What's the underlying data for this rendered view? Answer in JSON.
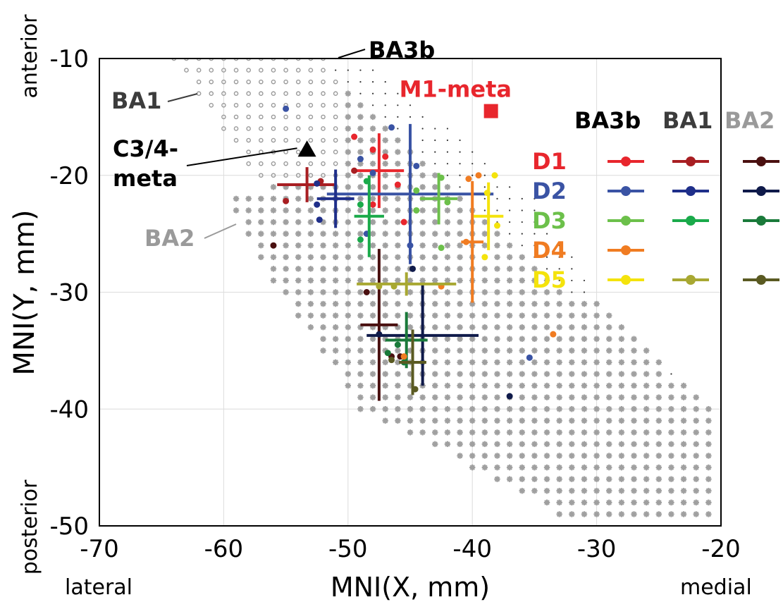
{
  "chart_data": {
    "type": "scatter",
    "xlabel": "MNI(X, mm)",
    "ylabel": "MNI(Y, mm)",
    "xlim": [
      -70,
      -20
    ],
    "ylim": [
      -50,
      -8
    ],
    "x_ticks": [
      -70,
      -60,
      -50,
      -40,
      -30,
      -20
    ],
    "y_ticks": [
      -10,
      -20,
      -30,
      -40,
      -50
    ],
    "x_tick_labels": [
      "-70",
      "-60",
      "-50",
      "-40",
      "-30",
      "-20"
    ],
    "y_tick_labels": [
      "-10",
      "-20",
      "-30",
      "-40",
      "-50"
    ],
    "grid": true,
    "orientation_labels": {
      "anterior": "anterior",
      "posterior": "posterior",
      "lateral": "lateral",
      "medial": "medial"
    },
    "region_labels": [
      {
        "text": "BA3b",
        "color": "#000000",
        "x": -49.5,
        "y": -9.3,
        "pointer_x": -52,
        "pointer_y": -10
      },
      {
        "text": "BA1",
        "color": "#3c3c3c",
        "x": -66.5,
        "y": -13.7,
        "pointer_x": -62,
        "pointer_y": -13
      },
      {
        "text": "BA2",
        "color": "#9a9a9a",
        "x": -64,
        "y": -25.5,
        "pointer_x": -59.5,
        "pointer_y": -23.5
      }
    ],
    "markers": [
      {
        "name": "M1-meta",
        "label": "M1-meta",
        "shape": "square",
        "color": "#e8262d",
        "x": -38.5,
        "y": -14.5
      },
      {
        "name": "C3/4-meta",
        "label_lines": [
          "C3/4-",
          "meta"
        ],
        "shape": "triangle",
        "color": "#000000",
        "x": -53.3,
        "y": -17.8
      }
    ],
    "legend": {
      "placement": "top-right",
      "columns": [
        "BA3b",
        "BA1",
        "BA2"
      ],
      "column_colors": [
        "#000000",
        "#3c3c3c",
        "#9a9a9a"
      ],
      "rows": [
        {
          "label": "D1",
          "color": "#e8262d",
          "colors": [
            "#e8262d",
            "#a81e22",
            "#4a1010"
          ]
        },
        {
          "label": "D2",
          "color": "#3a53a4",
          "colors": [
            "#3a53a4",
            "#1f2f8a",
            "#0f1a4a"
          ]
        },
        {
          "label": "D3",
          "color": "#6cc04a",
          "colors": [
            "#6cc04a",
            "#1aaa4a",
            "#1a7a3a"
          ]
        },
        {
          "label": "D4",
          "color": "#f07c22",
          "colors": [
            "#f07c22"
          ]
        },
        {
          "label": "D5",
          "color": "#f4e30c",
          "colors": [
            "#f4e30c",
            "#a8a832",
            "#5a5a22"
          ]
        }
      ]
    },
    "series": [
      {
        "name": "D1 BA3b",
        "color": "#e8262d",
        "center": [
          -47.5,
          -19.6
        ],
        "xerr": 2,
        "yerr": 3.2,
        "points": [
          [
            -49.5,
            -16.7
          ],
          [
            -48,
            -17.8
          ],
          [
            -47,
            -18.4
          ],
          [
            -46,
            -20.8
          ],
          [
            -45.5,
            -24
          ],
          [
            -48,
            -22.5
          ]
        ]
      },
      {
        "name": "D1 BA1",
        "color": "#a81e22",
        "center": [
          -53.3,
          -20.8
        ],
        "xerr": 2.4,
        "yerr": 1.5,
        "points": [
          [
            -55,
            -22.2
          ],
          [
            -52.2,
            -20.5
          ],
          [
            -49.5,
            -19.6
          ]
        ]
      },
      {
        "name": "D1 BA2",
        "color": "#4a1010",
        "center": [
          -47.5,
          -32.8
        ],
        "xerr": 1.5,
        "yerr": 6.5,
        "points": [
          [
            -56,
            -26
          ],
          [
            -48.5,
            -30
          ],
          [
            -46.5,
            -35.5
          ],
          [
            -45.8,
            -35.5
          ]
        ]
      },
      {
        "name": "D2 BA3b",
        "color": "#3a53a4",
        "center": [
          -45,
          -21.6
        ],
        "xerr": 6.7,
        "yerr": 6,
        "points": [
          [
            -46.5,
            -15.9
          ],
          [
            -49,
            -18.6
          ],
          [
            -44.5,
            -19.2
          ],
          [
            -45,
            -26
          ],
          [
            -48.5,
            -25
          ],
          [
            -55,
            -14.3
          ],
          [
            -35.4,
            -35.6
          ],
          [
            -48,
            -19.8
          ]
        ]
      },
      {
        "name": "D2 BA1",
        "color": "#1f2f8a",
        "center": [
          -51,
          -22
        ],
        "xerr": 1.5,
        "yerr": 2.5,
        "points": [
          [
            -52.5,
            -20.7
          ],
          [
            -52.5,
            -22.5
          ],
          [
            -52.3,
            -23.8
          ]
        ]
      },
      {
        "name": "D2 BA2",
        "color": "#0f1a4a",
        "center": [
          -44,
          -33.7
        ],
        "xerr": 4.5,
        "yerr": 4.3,
        "points": [
          [
            -44.8,
            -28
          ],
          [
            -37,
            -38.9
          ],
          [
            -47.5,
            -33.6
          ]
        ]
      },
      {
        "name": "D3 BA3b",
        "color": "#6cc04a",
        "center": [
          -42.7,
          -22
        ],
        "xerr": 1.5,
        "yerr": 2.2,
        "points": [
          [
            -42.5,
            -20.2
          ],
          [
            -42,
            -22.3
          ],
          [
            -42.5,
            -26.2
          ],
          [
            -44.5,
            -21.3
          ],
          [
            -44.5,
            -23
          ]
        ]
      },
      {
        "name": "D3 BA1",
        "color": "#1aaa4a",
        "center": [
          -48.3,
          -23.5
        ],
        "xerr": 1.2,
        "yerr": 3.5,
        "points": [
          [
            -48.5,
            -20.5
          ],
          [
            -49,
            -25.5
          ],
          [
            -49,
            -22.5
          ]
        ]
      },
      {
        "name": "D3 BA2",
        "color": "#1a7a3a",
        "center": [
          -45.3,
          -34.1
        ],
        "xerr": 1.7,
        "yerr": 2.4,
        "points": [
          [
            -46.8,
            -35.2
          ],
          [
            -45.5,
            -36
          ],
          [
            -46,
            -34.5
          ]
        ]
      },
      {
        "name": "D4 BA3b",
        "color": "#f07c22",
        "center": [
          -40,
          -25.7
        ],
        "xerr": 0.9,
        "yerr": 5.2,
        "points": [
          [
            -39.5,
            -20
          ],
          [
            -40.3,
            -20.3
          ],
          [
            -42.5,
            -29.5
          ],
          [
            -33.5,
            -33.6
          ],
          [
            -45.5,
            -35.5
          ],
          [
            -40.5,
            -25.7
          ]
        ]
      },
      {
        "name": "D5 BA3b",
        "color": "#f4e30c",
        "center": [
          -38.7,
          -23.5
        ],
        "xerr": 1.2,
        "yerr": 2.9,
        "points": [
          [
            -38.2,
            -20
          ],
          [
            -38,
            -24.3
          ],
          [
            -39,
            -27
          ],
          [
            -38.8,
            -21.5
          ]
        ]
      },
      {
        "name": "D5 BA1",
        "color": "#a8a832",
        "center": [
          -45.3,
          -29.3
        ],
        "xerr": 4,
        "yerr": 1,
        "points": [
          [
            -46.3,
            -29.5
          ],
          [
            -47.5,
            -29.5
          ]
        ]
      },
      {
        "name": "D5 BA2",
        "color": "#5a5a22",
        "center": [
          -44.8,
          -36
        ],
        "xerr": 1.1,
        "yerr": 2.8,
        "points": [
          [
            -46.5,
            -35.8
          ],
          [
            -44.6,
            -38.3
          ]
        ]
      }
    ]
  }
}
